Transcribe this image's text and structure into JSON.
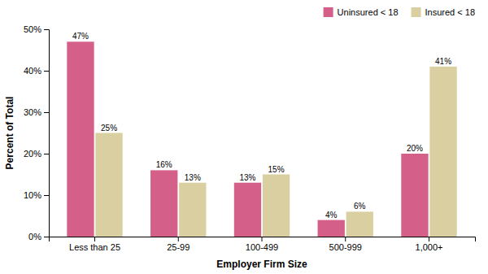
{
  "chart_data": {
    "type": "bar",
    "categories": [
      "Less than 25",
      "25-99",
      "100-499",
      "500-999",
      "1,000+"
    ],
    "series": [
      {
        "name": "Uninsured < 18",
        "color": "#D4608A",
        "values": [
          47,
          16,
          13,
          4,
          20
        ],
        "value_labels": [
          "47%",
          "16%",
          "13%",
          "4%",
          "20%"
        ]
      },
      {
        "name": "Insured < 18",
        "color": "#D9CFA0",
        "values": [
          25,
          13,
          15,
          6,
          41
        ],
        "value_labels": [
          "25%",
          "13%",
          "15%",
          "6%",
          "41%"
        ]
      }
    ],
    "xlabel": "Employer Firm Size",
    "ylabel": "Percent of Total",
    "ylim": [
      0,
      50
    ],
    "yticks": [
      {
        "value": 0,
        "label": "0%"
      },
      {
        "value": 10,
        "label": "10%"
      },
      {
        "value": 20,
        "label": "20%"
      },
      {
        "value": 30,
        "label": "30%"
      },
      {
        "value": 40,
        "label": "40%"
      },
      {
        "value": 50,
        "label": "50%"
      }
    ],
    "data_labels": true,
    "legend": "upper right"
  }
}
